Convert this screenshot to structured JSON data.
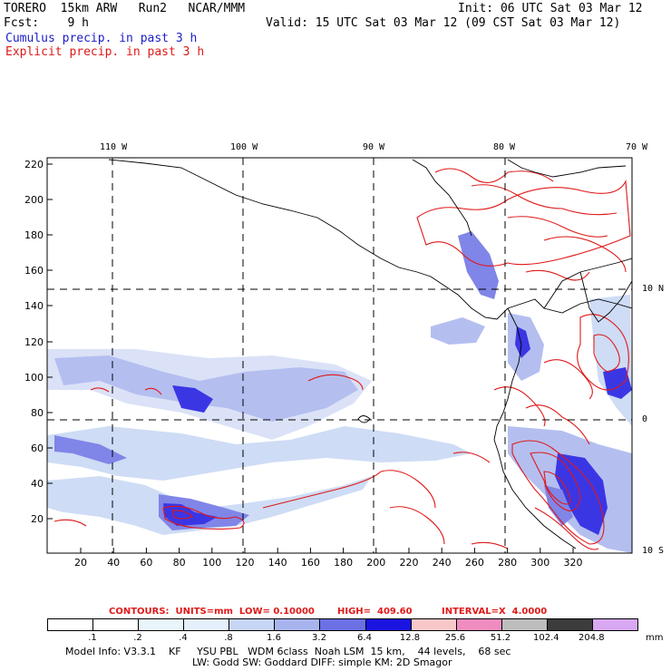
{
  "header": {
    "model": "TORERO  15km ARW   Run2   NCAR/MMM",
    "init": "Init: 06 UTC Sat 03 Mar 12",
    "fcst": "Fcst:    9 h",
    "valid": "Valid: 15 UTC Sat 03 Mar 12 (09 CST Sat 03 Mar 12)",
    "cumulus": "Cumulus precip. in past 3 h",
    "explicit": "Explicit precip. in past 3 h"
  },
  "axes": {
    "top_labels": [
      "110 W",
      "100 W",
      "90 W",
      "80 W",
      "70 W"
    ],
    "right_labels": [
      "10 N",
      "0",
      "10 S"
    ],
    "left_ticks": [
      "220",
      "200",
      "180",
      "160",
      "140",
      "120",
      "100",
      "80",
      "60",
      "40",
      "20"
    ],
    "bottom_ticks": [
      "20",
      "40",
      "60",
      "80",
      "100",
      "120",
      "140",
      "160",
      "180",
      "200",
      "220",
      "240",
      "260",
      "280",
      "300",
      "320"
    ]
  },
  "contours": {
    "label1": "CONTOURS:  UNITS=mm  LOW= 0.10000",
    "label2": "HIGH=  409.60",
    "label3": "INTERVAL=X  4.0000"
  },
  "colorbar": {
    "labels": [
      ".1",
      ".2",
      ".4",
      ".8",
      "1.6",
      "3.2",
      "6.4",
      "12.8",
      "25.6",
      "51.2",
      "102.4",
      "204.8"
    ],
    "unit": "mm",
    "colors": [
      "#ffffff",
      "#ffffff",
      "#e8f6fb",
      "#e4f0fb",
      "#c6d6f4",
      "#a8b4ee",
      "#6b70e4",
      "#1a14e0",
      "#f8c8c8",
      "#f08cc0",
      "#bdbdbd",
      "#3c3c3c",
      "#d8a8f2"
    ]
  },
  "footer": {
    "line1": "Model Info: V3.3.1    KF     YSU PBL   WDM 6class  Noah LSM  15 km,    44 levels,    68 sec",
    "line2": "LW: Godd SW: Goddard DIFF: simple KM: 2D Smagor"
  }
}
